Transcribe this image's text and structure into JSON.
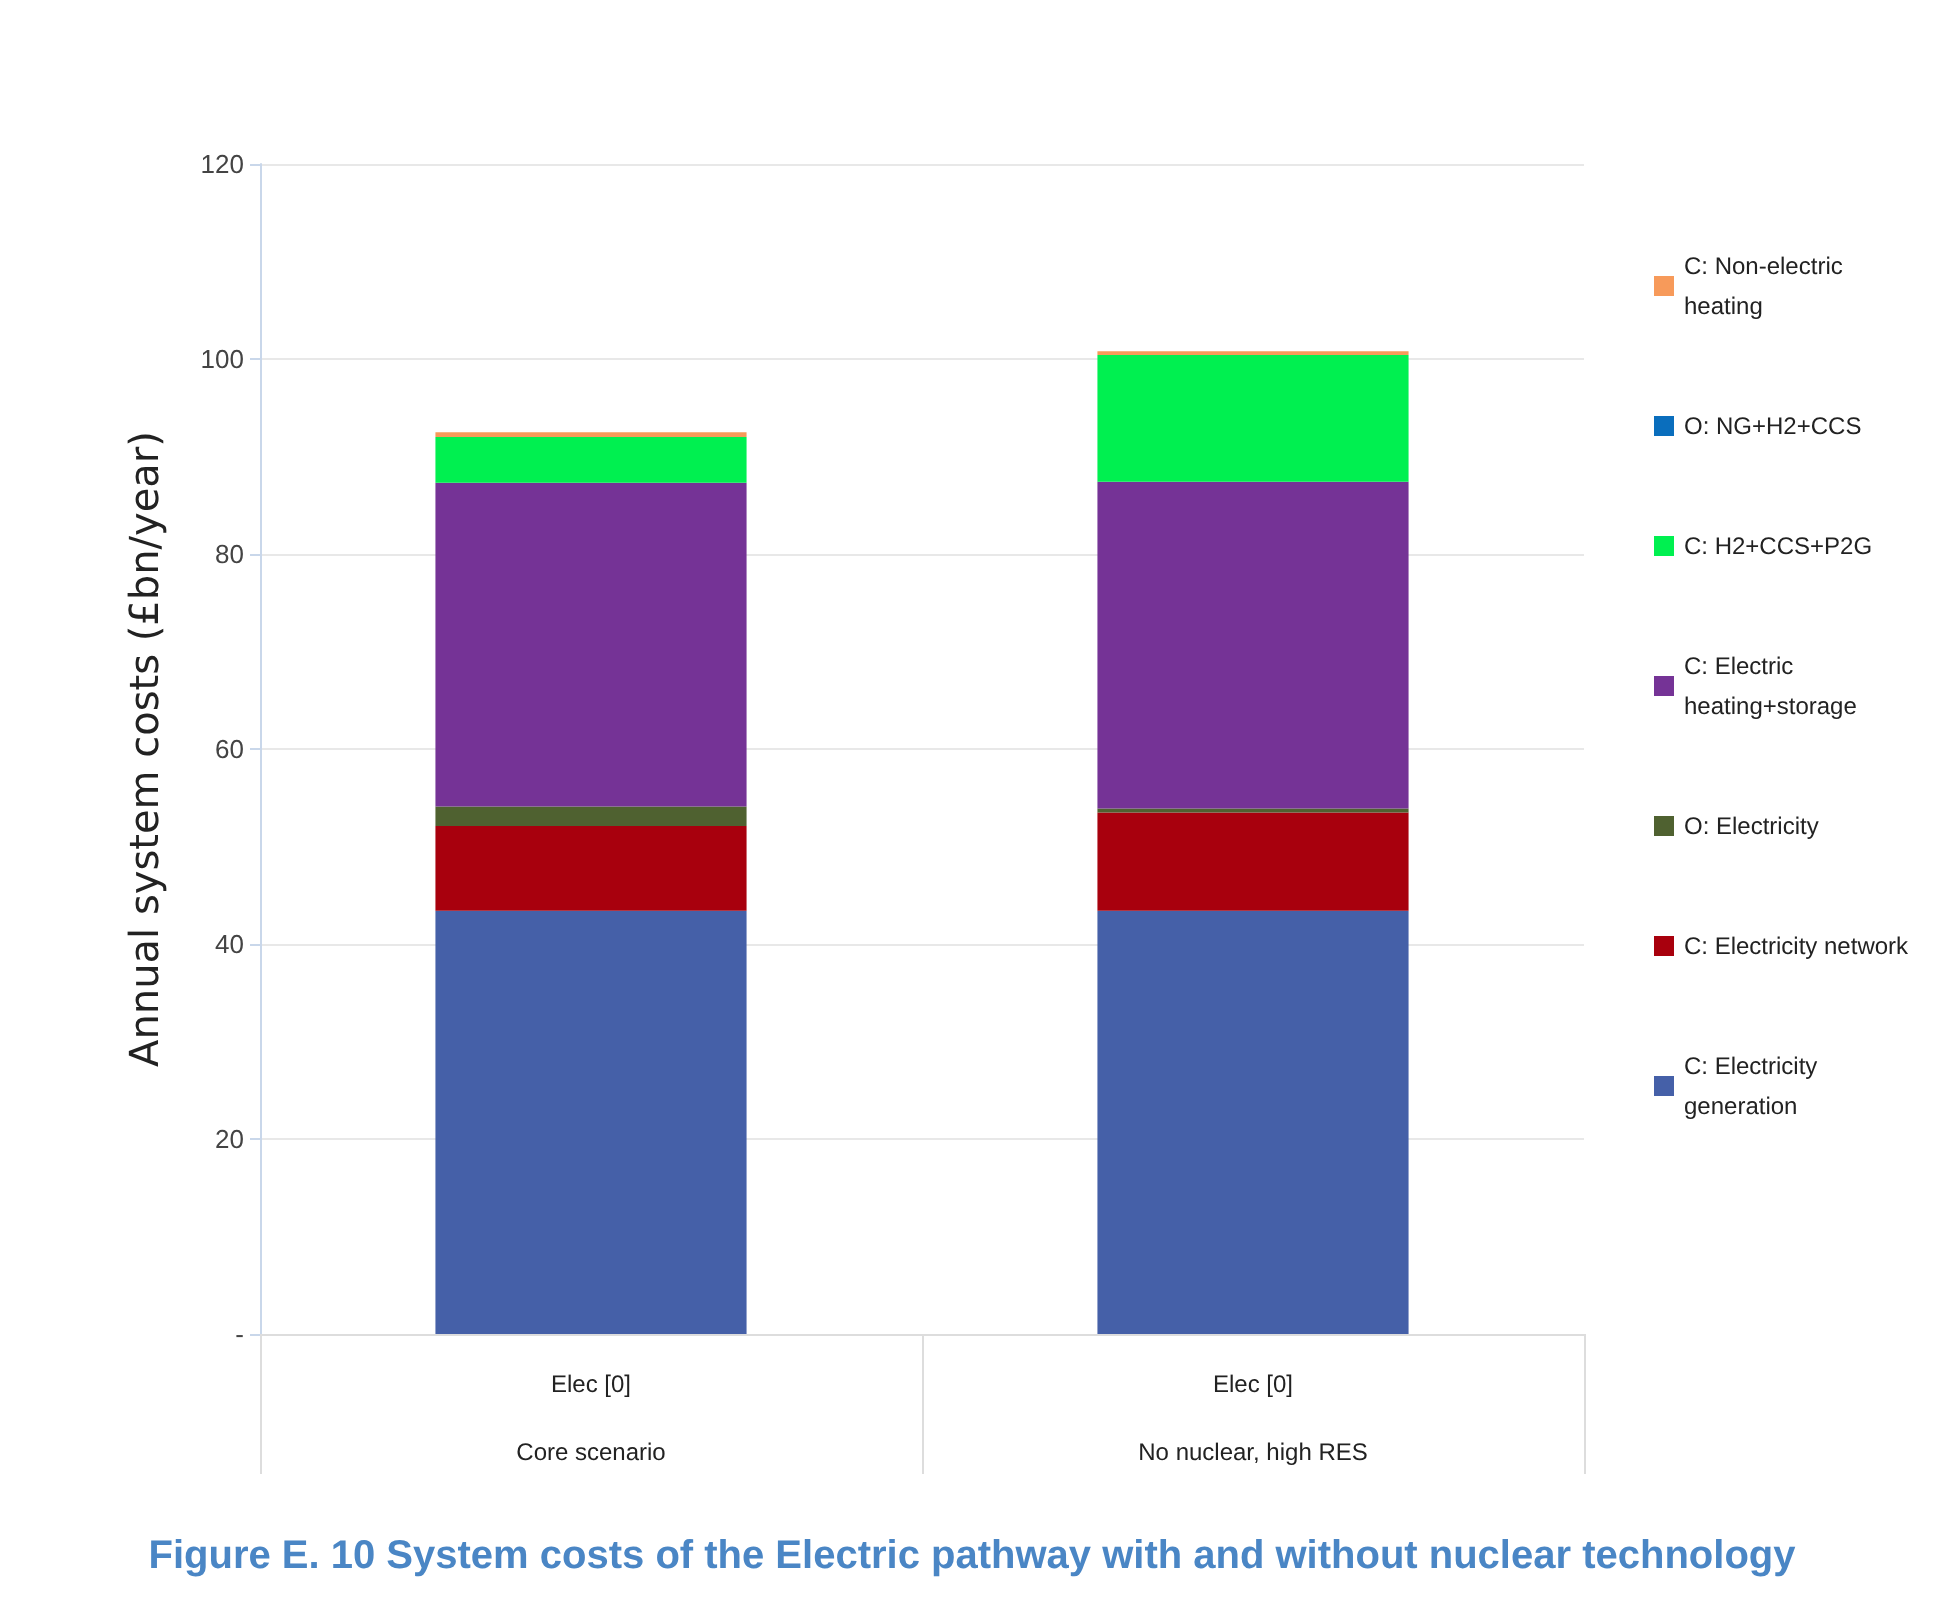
{
  "chart_data": {
    "type": "bar",
    "stacked": true,
    "title": "Figure E. 10 System costs of the Electric pathway with and without nuclear technology",
    "ylabel": "Annual system costs (£bn/year)",
    "categories": [
      "Elec [0]\nCore scenario",
      "Elec [0]\nNo nuclear, high RES"
    ],
    "series": [
      {
        "name": "C: Electricity generation",
        "color": "#4560a8",
        "values": [
          43.4,
          43.4
        ]
      },
      {
        "name": "C: Electricity network",
        "color": "#a8000d",
        "values": [
          8.7,
          10.1
        ]
      },
      {
        "name": "O: Electricity",
        "color": "#4f6130",
        "values": [
          2.0,
          0.4
        ]
      },
      {
        "name": "C: Electric heating+storage",
        "color": "#753396",
        "values": [
          33.2,
          33.5
        ]
      },
      {
        "name": "C: H2+CCS+P2G",
        "color": "#00f050",
        "values": [
          4.7,
          13.0
        ]
      },
      {
        "name": "O: NG+H2+CCS",
        "color": "#0a6ebd",
        "values": [
          0,
          0
        ]
      },
      {
        "name": "C: Non-electric heating",
        "color": "#f79a5a",
        "values": [
          0.5,
          0.4
        ]
      }
    ],
    "ylim": [
      0,
      120
    ],
    "yticks": [
      {
        "value": 0,
        "label": "-"
      },
      20,
      40,
      60,
      80,
      100,
      120
    ],
    "grid": "y",
    "legend": "right"
  }
}
